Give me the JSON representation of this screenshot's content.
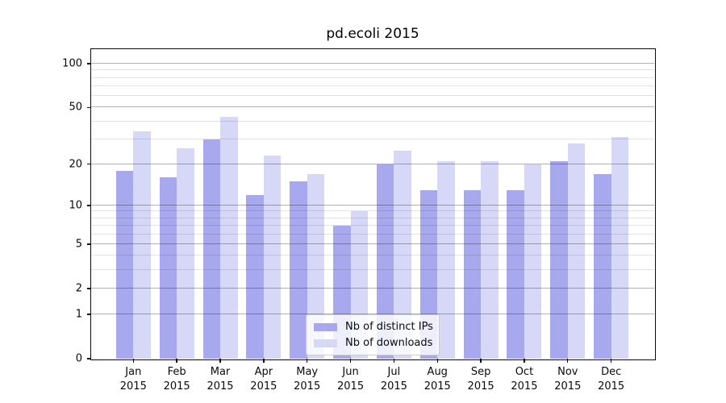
{
  "figure": {
    "title": "pd.ecoli 2015",
    "background": "#ffffff"
  },
  "chart_data": {
    "type": "bar",
    "title": "pd.ecoli 2015",
    "y_scale": "log1p",
    "grid": true,
    "categories": [
      "Jan 2015",
      "Feb 2015",
      "Mar 2015",
      "Apr 2015",
      "May 2015",
      "Jun 2015",
      "Jul 2015",
      "Aug 2015",
      "Sep 2015",
      "Oct 2015",
      "Nov 2015",
      "Dec 2015"
    ],
    "series": [
      {
        "name": "Nb of distinct IPs",
        "color": "#a8a8ef",
        "values": [
          18,
          16,
          30,
          12,
          15,
          7,
          20,
          13,
          13,
          13,
          21,
          17
        ]
      },
      {
        "name": "Nb of downloads",
        "color": "#d7d7f7",
        "values": [
          34,
          26,
          43,
          23,
          17,
          9,
          25,
          21,
          21,
          20,
          28,
          31
        ]
      }
    ],
    "xlabel": "",
    "ylabel": "",
    "y_major_ticks": [
      0,
      1,
      2,
      5,
      10,
      20,
      50,
      100
    ],
    "y_minor_gridlines": [
      3,
      4,
      6,
      7,
      8,
      9,
      30,
      40,
      60,
      70,
      80,
      90
    ],
    "ylim": [
      0,
      126
    ],
    "legend_position": "lower center"
  },
  "colors": {
    "bar_distinct_ips": "#a8a8ef",
    "bar_downloads": "#d7d7f7",
    "grid_major": "#b3b3b3",
    "grid_minor": "#e3e3e3",
    "spine": "#0a0a0a",
    "text": "#000000",
    "legend_border": "#cccccc"
  }
}
